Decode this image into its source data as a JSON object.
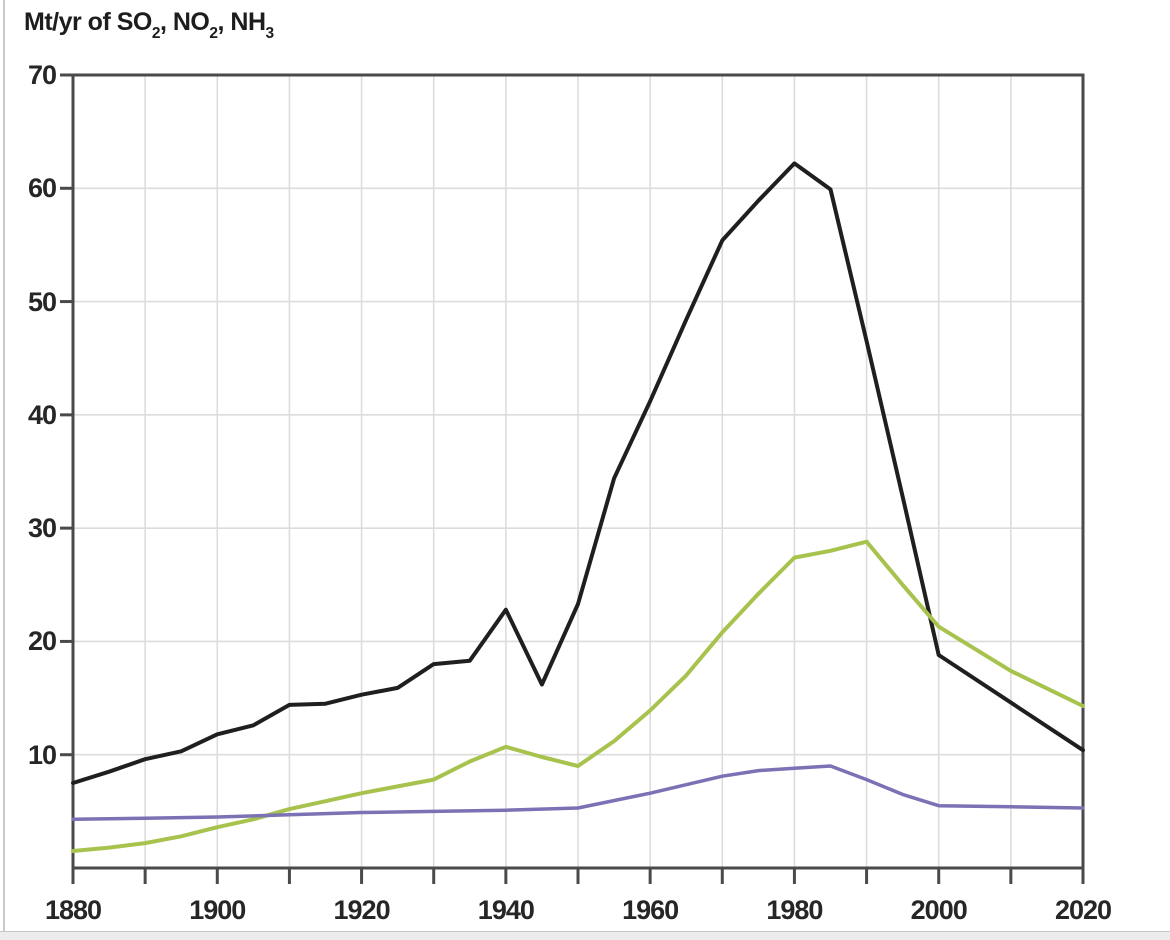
{
  "chart_data": {
    "type": "line",
    "title": "Mt/yr of SO2, NO2, NH3",
    "title_segments": [
      {
        "text": "Mt/yr of SO"
      },
      {
        "text": "2",
        "sub": true
      },
      {
        "text": ", NO"
      },
      {
        "text": "2",
        "sub": true
      },
      {
        "text": ", NH"
      },
      {
        "text": "3",
        "sub": true
      }
    ],
    "xlabel": "",
    "ylabel": "",
    "x_range": [
      1880,
      2020
    ],
    "y_range": [
      0,
      70
    ],
    "x_tick_step": 10,
    "x_label_step": 20,
    "grid": true,
    "legend": "none",
    "x_tick_labels": [
      "1880",
      "1900",
      "1920",
      "1940",
      "1960",
      "1980",
      "2000",
      "2020"
    ],
    "y_tick_labels": [
      "70",
      "60",
      "50",
      "40",
      "30",
      "20",
      "10"
    ],
    "series": [
      {
        "name": "SO2",
        "color": "#1f1f1f",
        "stroke_width": 4,
        "points": [
          [
            1880,
            7.5
          ],
          [
            1885,
            8.5
          ],
          [
            1890,
            9.6
          ],
          [
            1895,
            10.3
          ],
          [
            1900,
            11.8
          ],
          [
            1905,
            12.6
          ],
          [
            1910,
            14.4
          ],
          [
            1915,
            14.5
          ],
          [
            1920,
            15.3
          ],
          [
            1925,
            15.9
          ],
          [
            1930,
            18.0
          ],
          [
            1935,
            18.3
          ],
          [
            1940,
            22.8
          ],
          [
            1945,
            16.2
          ],
          [
            1950,
            23.3
          ],
          [
            1955,
            34.4
          ],
          [
            1960,
            41.2
          ],
          [
            1965,
            48.4
          ],
          [
            1970,
            55.4
          ],
          [
            1975,
            58.9
          ],
          [
            1980,
            62.2
          ],
          [
            1985,
            59.9
          ],
          [
            1990,
            46.5
          ],
          [
            1995,
            32.8
          ],
          [
            2000,
            18.8
          ],
          [
            2010,
            14.6
          ],
          [
            2020,
            10.4
          ]
        ]
      },
      {
        "name": "NO2",
        "color": "#a8c24e",
        "stroke_width": 4,
        "points": [
          [
            1880,
            1.5
          ],
          [
            1885,
            1.8
          ],
          [
            1890,
            2.2
          ],
          [
            1895,
            2.8
          ],
          [
            1900,
            3.6
          ],
          [
            1905,
            4.3
          ],
          [
            1910,
            5.2
          ],
          [
            1915,
            5.9
          ],
          [
            1920,
            6.6
          ],
          [
            1925,
            7.2
          ],
          [
            1930,
            7.8
          ],
          [
            1935,
            9.4
          ],
          [
            1940,
            10.7
          ],
          [
            1945,
            9.8
          ],
          [
            1950,
            9.0
          ],
          [
            1955,
            11.2
          ],
          [
            1960,
            13.9
          ],
          [
            1965,
            17.0
          ],
          [
            1970,
            20.8
          ],
          [
            1975,
            24.2
          ],
          [
            1980,
            27.4
          ],
          [
            1985,
            28.0
          ],
          [
            1990,
            28.8
          ],
          [
            1995,
            25.0
          ],
          [
            2000,
            21.3
          ],
          [
            2010,
            17.4
          ],
          [
            2020,
            14.3
          ]
        ]
      },
      {
        "name": "NH3",
        "color": "#7a72b4",
        "stroke_width": 3.5,
        "points": [
          [
            1880,
            4.3
          ],
          [
            1890,
            4.4
          ],
          [
            1900,
            4.5
          ],
          [
            1910,
            4.7
          ],
          [
            1920,
            4.9
          ],
          [
            1930,
            5.0
          ],
          [
            1940,
            5.1
          ],
          [
            1950,
            5.3
          ],
          [
            1960,
            6.6
          ],
          [
            1970,
            8.1
          ],
          [
            1975,
            8.6
          ],
          [
            1980,
            8.8
          ],
          [
            1985,
            9.0
          ],
          [
            1990,
            7.8
          ],
          [
            1995,
            6.5
          ],
          [
            2000,
            5.5
          ],
          [
            2010,
            5.4
          ],
          [
            2020,
            5.3
          ]
        ]
      }
    ]
  },
  "decor": {
    "grid_color": "#dcdcdc",
    "axis_color": "#4a4a4a",
    "text_color": "#262626",
    "background": "#ffffff",
    "bottom_strip_color": "#ececec",
    "edge_line_color": "#c9c9c9"
  }
}
